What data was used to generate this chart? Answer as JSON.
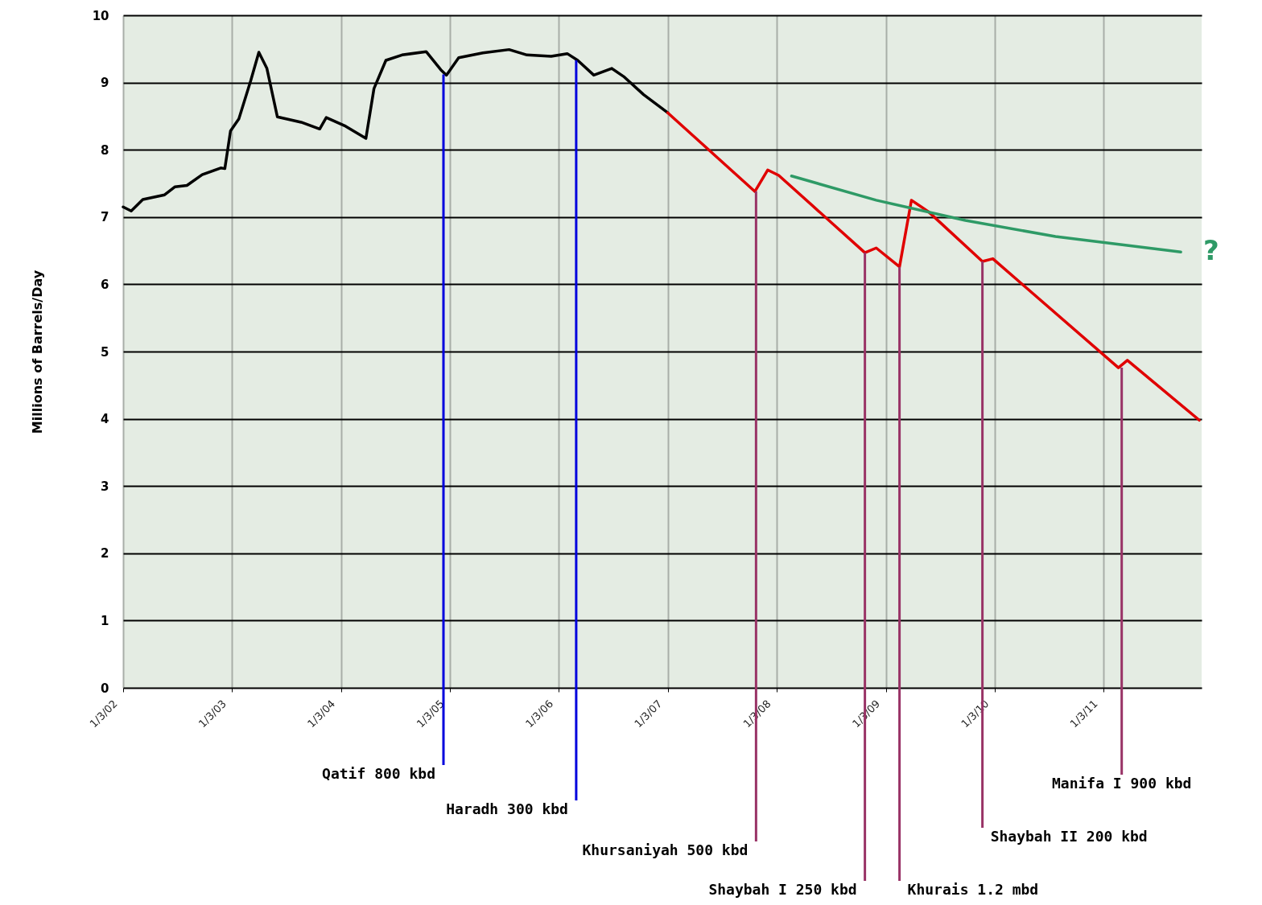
{
  "chart_data": {
    "type": "line",
    "ylabel": "Millions of Barrels/Day",
    "xlim": [
      "2002-01-03",
      "2011-11-28"
    ],
    "xticks": [
      {
        "value": "2002-01-03",
        "label": "1/3/02"
      },
      {
        "value": "2003-01-03",
        "label": "1/3/03"
      },
      {
        "value": "2004-01-03",
        "label": "1/3/04"
      },
      {
        "value": "2005-01-03",
        "label": "1/3/05"
      },
      {
        "value": "2006-01-03",
        "label": "1/3/06"
      },
      {
        "value": "2007-01-03",
        "label": "1/3/07"
      },
      {
        "value": "2008-01-03",
        "label": "1/3/08"
      },
      {
        "value": "2009-01-03",
        "label": "1/3/09"
      },
      {
        "value": "2010-01-03",
        "label": "1/3/10"
      },
      {
        "value": "2011-01-03",
        "label": "1/3/11"
      }
    ],
    "ylim": [
      0,
      10
    ],
    "yticks": [
      0,
      1,
      2,
      3,
      4,
      5,
      6,
      7,
      8,
      9,
      10
    ],
    "grid": true,
    "marker": "none",
    "line_style": "solid",
    "series": [
      {
        "color": "#000000",
        "x": [
          "2002-01-03",
          "2002-01-30",
          "2002-03-10",
          "2002-05-22",
          "2002-06-26",
          "2002-08-05",
          "2002-09-25",
          "2002-11-26",
          "2002-12-10",
          "2002-12-29",
          "2003-01-26",
          "2003-03-07",
          "2003-04-03",
          "2003-04-30",
          "2003-06-04",
          "2003-08-23",
          "2003-10-24",
          "2003-11-15",
          "2004-01-19",
          "2004-03-27",
          "2004-04-23",
          "2004-06-02",
          "2004-07-26",
          "2004-10-15",
          "2004-12-03",
          "2004-12-22",
          "2005-02-01",
          "2005-04-23",
          "2005-07-20",
          "2005-09-18",
          "2005-12-08",
          "2006-01-31",
          "2006-03-07",
          "2006-04-30",
          "2006-06-29",
          "2006-08-08",
          "2006-10-14",
          "2007-01-03"
        ],
        "values": [
          7.15,
          7.09,
          7.26,
          7.33,
          7.45,
          7.47,
          7.63,
          7.73,
          7.72,
          8.28,
          8.46,
          9.03,
          9.45,
          9.21,
          8.49,
          8.41,
          8.31,
          8.48,
          8.35,
          8.17,
          8.91,
          9.33,
          9.41,
          9.46,
          9.19,
          9.11,
          9.37,
          9.44,
          9.49,
          9.41,
          9.39,
          9.43,
          9.33,
          9.11,
          9.21,
          9.09,
          8.82,
          8.55
        ]
      },
      {
        "color": "#e00000",
        "x": [
          "2007-01-03",
          "2007-10-22",
          "2007-12-04",
          "2008-01-10",
          "2008-10-25",
          "2008-12-02",
          "2009-02-18",
          "2009-03-30",
          "2009-05-26",
          "2009-11-23",
          "2009-12-28",
          "2011-02-22",
          "2011-03-24",
          "2011-11-20"
        ],
        "values": [
          8.55,
          7.38,
          7.7,
          7.62,
          6.47,
          6.54,
          6.26,
          7.25,
          7.08,
          6.34,
          6.38,
          4.76,
          4.87,
          3.98
        ]
      },
      {
        "color": "#2e9a66",
        "x": [
          "2008-02-22",
          "2008-12-02",
          "2009-09-27",
          "2010-07-26",
          "2011-09-19"
        ],
        "values": [
          7.61,
          7.25,
          6.95,
          6.71,
          6.48
        ]
      }
    ],
    "annotations": [
      {
        "text": "Qatif 800 kbd",
        "x": "2004-12-12",
        "y": 9.12
      },
      {
        "text": "Haradh 300 kbd",
        "x": "2006-03-02",
        "y": 9.33
      },
      {
        "text": "Khursaniyah 500 kbd",
        "x": "2007-10-26",
        "y": 7.38
      },
      {
        "text": "Shaybah I 250 kbd",
        "x": "2008-10-25",
        "y": 6.47
      },
      {
        "text": "Khurais 1.2 mbd",
        "x": "2009-02-18",
        "y": 6.26
      },
      {
        "text": "Shaybah II 200 kbd",
        "x": "2009-11-23",
        "y": 6.34
      },
      {
        "text": "Manifa I 900 kbd",
        "x": "2011-03-05",
        "y": 4.76
      },
      "?"
    ]
  }
}
